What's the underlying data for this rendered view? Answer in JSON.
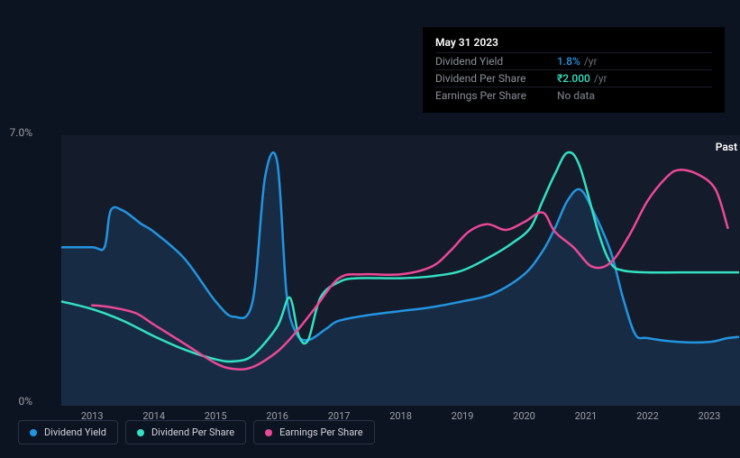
{
  "chart": {
    "type": "line",
    "background_color": "#0d1421",
    "plot_background_color": "#141b2a",
    "font_color": "#9aa0a8",
    "y_axis": {
      "label_top": "7.0%",
      "label_bottom": "0%",
      "ylim": [
        0,
        7.0
      ]
    },
    "x_axis": {
      "ticks": [
        "2013",
        "2014",
        "2015",
        "2016",
        "2017",
        "2018",
        "2019",
        "2020",
        "2021",
        "2022",
        "2023"
      ],
      "xlim": [
        2012.5,
        2023.6
      ]
    },
    "annotations": {
      "past_label": "Past"
    },
    "series": [
      {
        "name": "Dividend Yield",
        "color": "#2394df",
        "area_fill": "#1a3a5a",
        "area_opacity": 0.55,
        "line_width": 2.5,
        "handle_visible": true,
        "points": [
          [
            2012.5,
            4.1
          ],
          [
            2013.0,
            4.1
          ],
          [
            2013.2,
            4.1
          ],
          [
            2013.3,
            5.05
          ],
          [
            2013.5,
            5.05
          ],
          [
            2013.8,
            4.7
          ],
          [
            2014.0,
            4.5
          ],
          [
            2014.5,
            3.8
          ],
          [
            2015.0,
            2.7
          ],
          [
            2015.3,
            2.3
          ],
          [
            2015.6,
            2.7
          ],
          [
            2015.8,
            5.9
          ],
          [
            2016.0,
            6.3
          ],
          [
            2016.15,
            2.9
          ],
          [
            2016.3,
            1.9
          ],
          [
            2016.5,
            1.7
          ],
          [
            2016.8,
            2.0
          ],
          [
            2017.0,
            2.2
          ],
          [
            2017.5,
            2.35
          ],
          [
            2018.0,
            2.45
          ],
          [
            2018.5,
            2.55
          ],
          [
            2019.0,
            2.7
          ],
          [
            2019.5,
            2.9
          ],
          [
            2020.0,
            3.4
          ],
          [
            2020.3,
            4.0
          ],
          [
            2020.5,
            4.6
          ],
          [
            2020.7,
            5.3
          ],
          [
            2020.9,
            5.6
          ],
          [
            2021.1,
            5.1
          ],
          [
            2021.4,
            4.0
          ],
          [
            2021.6,
            2.8
          ],
          [
            2021.8,
            1.85
          ],
          [
            2022.0,
            1.75
          ],
          [
            2022.5,
            1.65
          ],
          [
            2023.0,
            1.65
          ],
          [
            2023.3,
            1.75
          ],
          [
            2023.6,
            1.8
          ]
        ]
      },
      {
        "name": "Dividend Per Share",
        "color": "#33e0c2",
        "line_width": 2.5,
        "handle_visible": true,
        "points": [
          [
            2012.5,
            2.7
          ],
          [
            2013.0,
            2.5
          ],
          [
            2013.5,
            2.2
          ],
          [
            2014.0,
            1.8
          ],
          [
            2014.5,
            1.45
          ],
          [
            2015.0,
            1.2
          ],
          [
            2015.3,
            1.15
          ],
          [
            2015.6,
            1.3
          ],
          [
            2016.0,
            2.05
          ],
          [
            2016.2,
            2.8
          ],
          [
            2016.35,
            1.8
          ],
          [
            2016.5,
            1.7
          ],
          [
            2016.7,
            2.8
          ],
          [
            2017.0,
            3.2
          ],
          [
            2017.3,
            3.3
          ],
          [
            2018.0,
            3.3
          ],
          [
            2018.5,
            3.35
          ],
          [
            2019.0,
            3.5
          ],
          [
            2019.5,
            3.9
          ],
          [
            2019.8,
            4.2
          ],
          [
            2020.1,
            4.6
          ],
          [
            2020.3,
            5.3
          ],
          [
            2020.5,
            6.0
          ],
          [
            2020.7,
            6.55
          ],
          [
            2020.9,
            6.2
          ],
          [
            2021.2,
            4.5
          ],
          [
            2021.4,
            3.7
          ],
          [
            2021.6,
            3.5
          ],
          [
            2022.0,
            3.45
          ],
          [
            2022.5,
            3.45
          ],
          [
            2023.0,
            3.45
          ],
          [
            2023.6,
            3.45
          ]
        ]
      },
      {
        "name": "Earnings Per Share",
        "color": "#eb4898",
        "line_width": 2.5,
        "handle_visible": false,
        "points": [
          [
            2013.0,
            2.6
          ],
          [
            2013.3,
            2.55
          ],
          [
            2013.7,
            2.4
          ],
          [
            2014.0,
            2.1
          ],
          [
            2014.5,
            1.6
          ],
          [
            2015.0,
            1.1
          ],
          [
            2015.3,
            0.95
          ],
          [
            2015.6,
            1.0
          ],
          [
            2016.0,
            1.4
          ],
          [
            2016.3,
            1.9
          ],
          [
            2016.6,
            2.5
          ],
          [
            2017.0,
            3.3
          ],
          [
            2017.4,
            3.4
          ],
          [
            2018.0,
            3.4
          ],
          [
            2018.5,
            3.6
          ],
          [
            2018.8,
            4.0
          ],
          [
            2019.1,
            4.5
          ],
          [
            2019.4,
            4.7
          ],
          [
            2019.7,
            4.55
          ],
          [
            2020.0,
            4.75
          ],
          [
            2020.3,
            5.0
          ],
          [
            2020.5,
            4.5
          ],
          [
            2020.8,
            4.1
          ],
          [
            2021.1,
            3.6
          ],
          [
            2021.4,
            3.7
          ],
          [
            2021.7,
            4.4
          ],
          [
            2022.0,
            5.3
          ],
          [
            2022.3,
            5.9
          ],
          [
            2022.5,
            6.1
          ],
          [
            2022.8,
            6.0
          ],
          [
            2023.1,
            5.6
          ],
          [
            2023.3,
            4.6
          ]
        ]
      }
    ]
  },
  "tooltip": {
    "date": "May 31 2023",
    "rows": [
      {
        "label": "Dividend Yield",
        "value": "1.8%",
        "suffix": "/yr",
        "value_color": "#2394df"
      },
      {
        "label": "Dividend Per Share",
        "value": "₹2.000",
        "suffix": "/yr",
        "value_color": "#33e0c2"
      },
      {
        "label": "Earnings Per Share",
        "value": "No data",
        "suffix": "",
        "value_color": "#6a6f78"
      }
    ]
  },
  "legend": [
    {
      "label": "Dividend Yield",
      "color": "#2394df"
    },
    {
      "label": "Dividend Per Share",
      "color": "#33e0c2"
    },
    {
      "label": "Earnings Per Share",
      "color": "#eb4898"
    }
  ]
}
